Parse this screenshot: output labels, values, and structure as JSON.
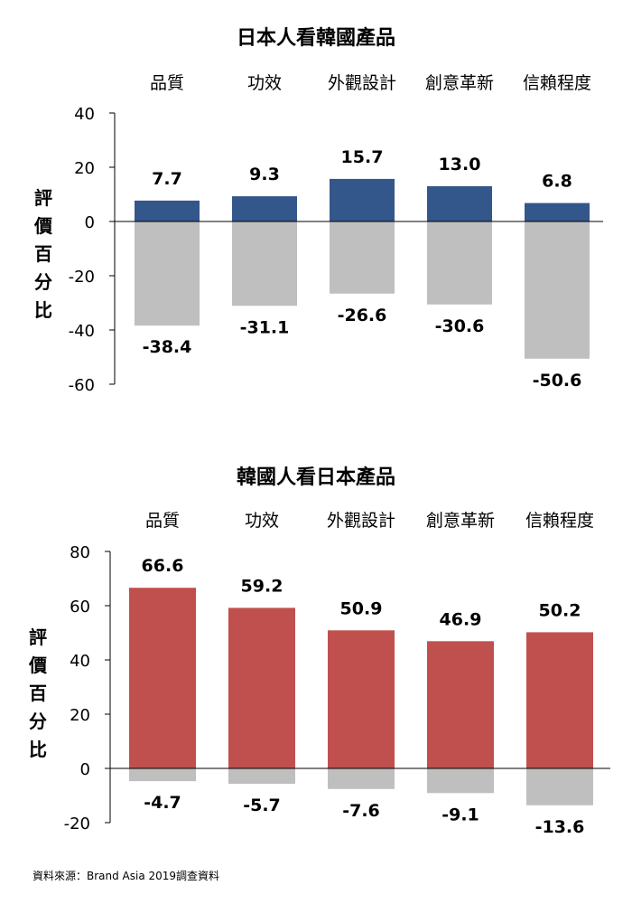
{
  "chart_data": [
    {
      "type": "bar",
      "title": "日本人看韓國產品",
      "ylabel": "評價百分比",
      "categories": [
        "品質",
        "功效",
        "外觀設計",
        "創意革新",
        "信賴程度"
      ],
      "ylim": [
        -60,
        40
      ],
      "yticks": [
        "40",
        "20",
        "0",
        "-20",
        "-40",
        "-60"
      ],
      "series": [
        {
          "values": [
            7.7,
            9.3,
            15.7,
            13.0,
            6.8
          ],
          "labels": [
            "7.7",
            "9.3",
            "15.7",
            "13.0",
            "6.8"
          ],
          "color": "#33578B"
        },
        {
          "values": [
            -38.4,
            -31.1,
            -26.6,
            -30.6,
            -50.6
          ],
          "labels": [
            "-38.4",
            "-31.1",
            "-26.6",
            "-30.6",
            "-50.6"
          ],
          "color": "#BFBFBF"
        }
      ],
      "grid": false
    },
    {
      "type": "bar",
      "title": "韓國人看日本產品",
      "ylabel": "評價百分比",
      "categories": [
        "品質",
        "功效",
        "外觀設計",
        "創意革新",
        "信賴程度"
      ],
      "ylim": [
        -20,
        80
      ],
      "yticks": [
        "80",
        "60",
        "40",
        "20",
        "0",
        "-20"
      ],
      "series": [
        {
          "values": [
            66.6,
            59.2,
            50.9,
            46.9,
            50.2
          ],
          "labels": [
            "66.6",
            "59.2",
            "50.9",
            "46.9",
            "50.2"
          ],
          "color": "#C0504D"
        },
        {
          "values": [
            -4.7,
            -5.7,
            -7.6,
            -9.1,
            -13.6
          ],
          "labels": [
            "-4.7",
            "-5.7",
            "-7.6",
            "-9.1",
            "-13.6"
          ],
          "color": "#BFBFBF"
        }
      ],
      "grid": false
    }
  ],
  "source": "資料來源：Brand Asia 2019調查資料"
}
